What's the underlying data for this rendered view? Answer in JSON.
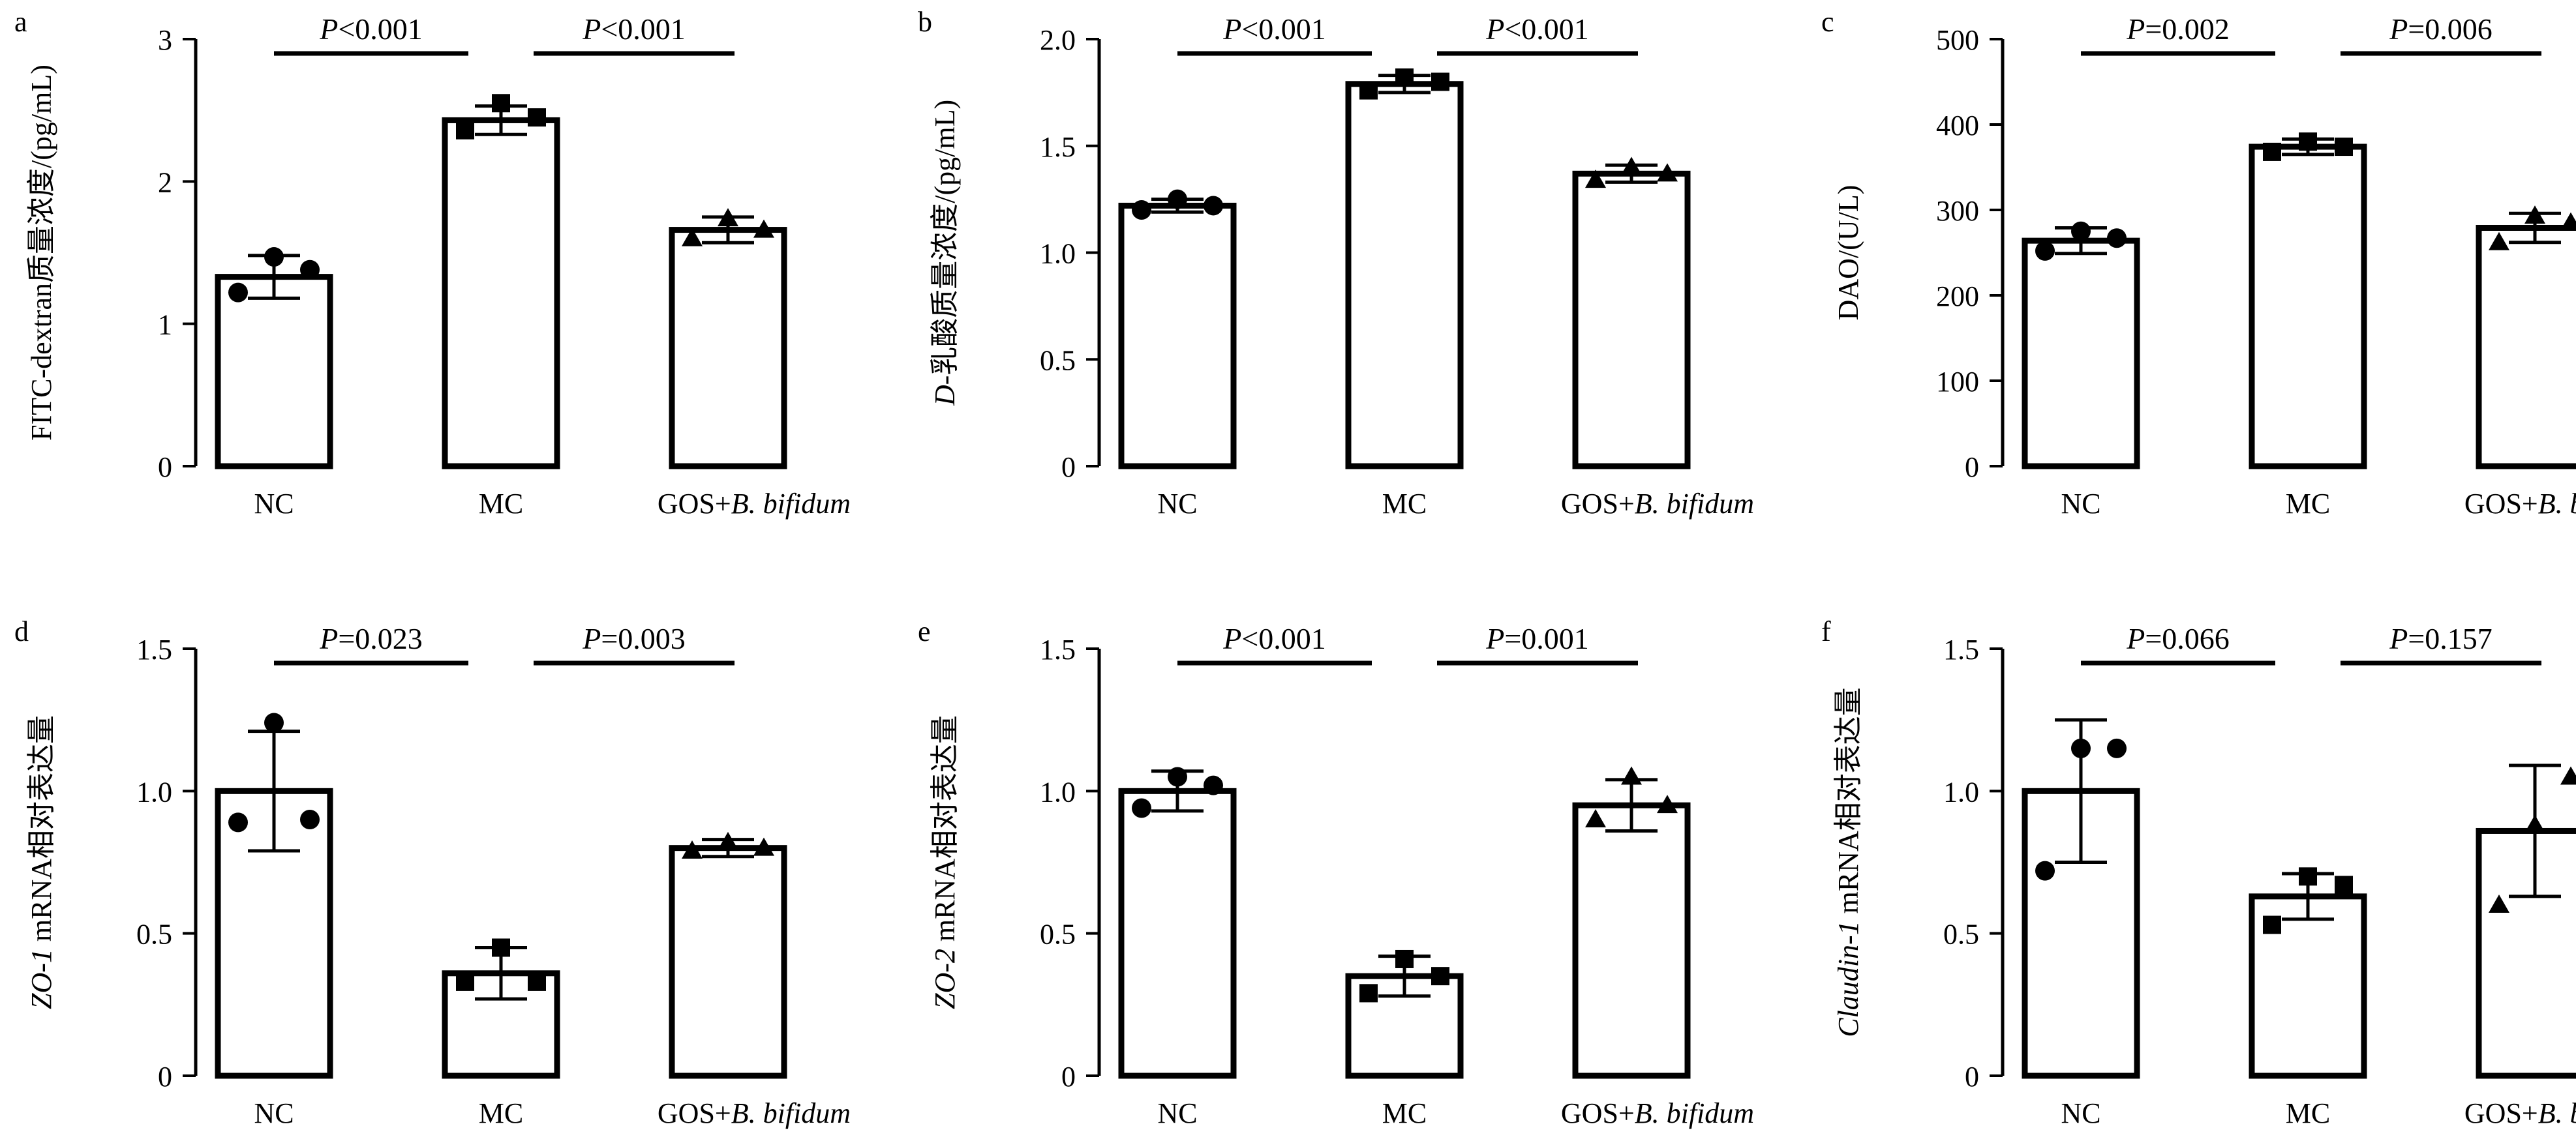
{
  "chart_data": [
    {
      "panel": "a",
      "type": "bar",
      "categories": [
        "NC",
        "MC",
        "GOS+B. bifidum"
      ],
      "ylabel": "FITC-dextran质量浓度/(pg/mL)",
      "ylim": [
        0,
        3
      ],
      "yticks": [
        "0",
        "1",
        "2",
        "3"
      ],
      "means": [
        1.33,
        2.43,
        1.66
      ],
      "sd": [
        0.15,
        0.1,
        0.09
      ],
      "points": [
        [
          1.22,
          1.47,
          1.38
        ],
        [
          2.36,
          2.55,
          2.45
        ],
        [
          1.6,
          1.74,
          1.66
        ]
      ],
      "markers": [
        "circle",
        "square",
        "triangle"
      ],
      "comparisons": [
        "P<0.001",
        "P<0.001"
      ]
    },
    {
      "panel": "b",
      "type": "bar",
      "categories": [
        "NC",
        "MC",
        "GOS+B. bifidum"
      ],
      "ylabel": "D-乳酸质量浓度/(pg/mL)",
      "ylim": [
        0,
        2.0
      ],
      "yticks": [
        "0",
        "0.5",
        "1.0",
        "1.5",
        "2.0"
      ],
      "means": [
        1.22,
        1.79,
        1.37
      ],
      "sd": [
        0.03,
        0.04,
        0.04
      ],
      "points": [
        [
          1.2,
          1.25,
          1.22
        ],
        [
          1.76,
          1.82,
          1.8
        ],
        [
          1.34,
          1.4,
          1.37
        ]
      ],
      "markers": [
        "circle",
        "square",
        "triangle"
      ],
      "comparisons": [
        "P<0.001",
        "P<0.001"
      ]
    },
    {
      "panel": "c",
      "type": "bar",
      "categories": [
        "NC",
        "MC",
        "GOS+B. bifidum"
      ],
      "ylabel": "DAO/(U/L)",
      "ylim": [
        0,
        500
      ],
      "yticks": [
        "0",
        "100",
        "200",
        "300",
        "400",
        "500"
      ],
      "means": [
        264,
        374,
        279
      ],
      "sd": [
        15,
        9,
        17
      ],
      "points": [
        [
          252,
          275,
          267
        ],
        [
          368,
          380,
          374
        ],
        [
          262,
          293,
          285
        ]
      ],
      "markers": [
        "circle",
        "square",
        "triangle"
      ],
      "comparisons": [
        "P=0.002",
        "P=0.006"
      ]
    },
    {
      "panel": "d",
      "type": "bar",
      "categories": [
        "NC",
        "MC",
        "GOS+B. bifidum"
      ],
      "ylabel": "ZO-1 mRNA相对表达量",
      "ylim": [
        0,
        1.5
      ],
      "yticks": [
        "0",
        "0.5",
        "1.0",
        "1.5"
      ],
      "means": [
        1.0,
        0.36,
        0.8
      ],
      "sd": [
        0.21,
        0.09,
        0.03
      ],
      "points": [
        [
          0.89,
          1.24,
          0.9
        ],
        [
          0.33,
          0.45,
          0.33
        ],
        [
          0.79,
          0.82,
          0.8
        ]
      ],
      "markers": [
        "circle",
        "square",
        "triangle"
      ],
      "comparisons": [
        "P=0.023",
        "P=0.003"
      ]
    },
    {
      "panel": "e",
      "type": "bar",
      "categories": [
        "NC",
        "MC",
        "GOS+B. bifidum"
      ],
      "ylabel": "ZO-2 mRNA相对表达量",
      "ylim": [
        0,
        1.5
      ],
      "yticks": [
        "0",
        "0.5",
        "1.0",
        "1.5"
      ],
      "means": [
        1.0,
        0.35,
        0.95
      ],
      "sd": [
        0.07,
        0.07,
        0.09
      ],
      "points": [
        [
          0.94,
          1.05,
          1.02
        ],
        [
          0.29,
          0.41,
          0.35
        ],
        [
          0.9,
          1.05,
          0.95
        ]
      ],
      "markers": [
        "circle",
        "square",
        "triangle"
      ],
      "comparisons": [
        "P<0.001",
        "P=0.001"
      ]
    },
    {
      "panel": "f",
      "type": "bar",
      "categories": [
        "NC",
        "MC",
        "GOS+B. bifidum"
      ],
      "ylabel": "Claudin-1 mRNA相对表达量",
      "ylim": [
        0,
        1.5
      ],
      "yticks": [
        "0",
        "0.5",
        "1.0",
        "1.5"
      ],
      "means": [
        1.0,
        0.63,
        0.86
      ],
      "sd": [
        0.25,
        0.08,
        0.23
      ],
      "points": [
        [
          0.72,
          1.15,
          1.15
        ],
        [
          0.53,
          0.7,
          0.67
        ],
        [
          0.6,
          0.88,
          1.05
        ]
      ],
      "markers": [
        "circle",
        "square",
        "triangle"
      ],
      "comparisons": [
        "P=0.066",
        "P=0.157"
      ]
    }
  ]
}
